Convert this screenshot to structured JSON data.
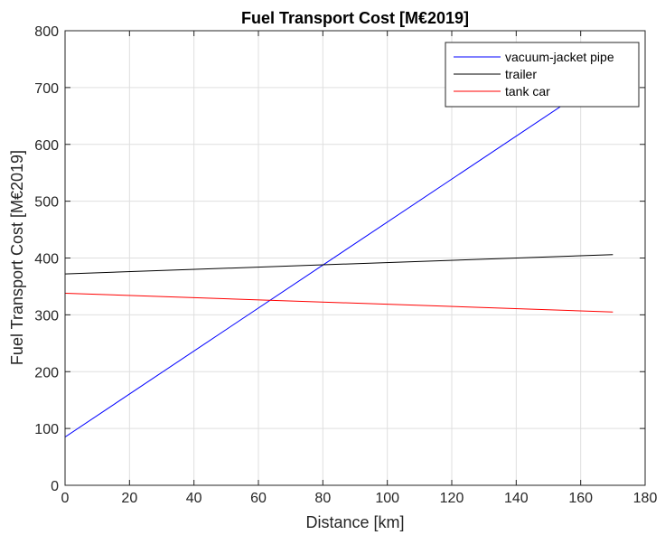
{
  "chart_data": {
    "type": "line",
    "title": "Fuel Transport Cost [M€2019]",
    "xlabel": "Distance [km]",
    "ylabel": "Fuel Transport Cost [M€2019]",
    "xlim": [
      0,
      180
    ],
    "ylim": [
      0,
      800
    ],
    "xticks": [
      0,
      20,
      40,
      60,
      80,
      100,
      120,
      140,
      160,
      180
    ],
    "yticks": [
      0,
      100,
      200,
      300,
      400,
      500,
      600,
      700,
      800
    ],
    "grid": true,
    "legend_position": "top-right",
    "series": [
      {
        "name": "vacuum-jacket pipe",
        "color": "#0000ff",
        "x": [
          0,
          170
        ],
        "y": [
          85,
          728
        ]
      },
      {
        "name": "trailer",
        "color": "#000000",
        "x": [
          0,
          170
        ],
        "y": [
          372,
          406
        ]
      },
      {
        "name": "tank car",
        "color": "#ff0000",
        "x": [
          0,
          170
        ],
        "y": [
          338,
          305
        ]
      }
    ]
  }
}
